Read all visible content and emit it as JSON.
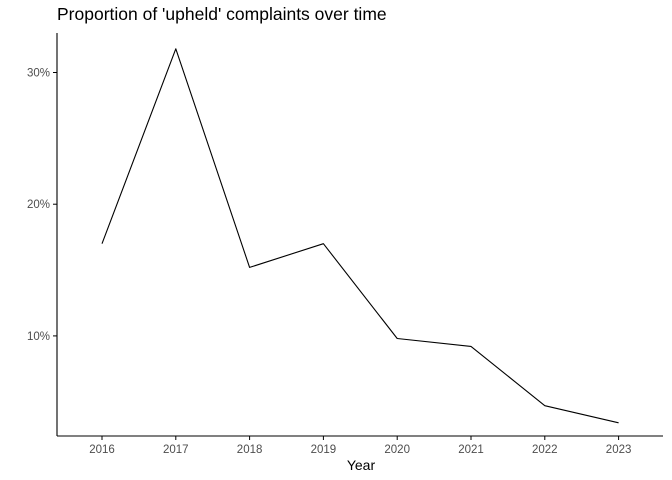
{
  "chart_data": {
    "type": "line",
    "title": "Proportion of 'upheld' complaints over time",
    "xlabel": "Year",
    "ylabel": "",
    "x": [
      "2016",
      "2017",
      "2018",
      "2019",
      "2020",
      "2021",
      "2022",
      "2023"
    ],
    "series": [
      {
        "values": [
          0.17,
          0.318,
          0.152,
          0.17,
          0.098,
          0.092,
          0.047,
          0.034
        ]
      }
    ],
    "y_ticks": [
      0.1,
      0.2,
      0.3
    ],
    "y_tick_labels": [
      "10%",
      "20%",
      "30%"
    ],
    "ylim": [
      0.024,
      0.33
    ],
    "grid": false,
    "line_color": "#000000",
    "axis_color": "#000000",
    "tick_label_color": "#4d4d4d"
  }
}
